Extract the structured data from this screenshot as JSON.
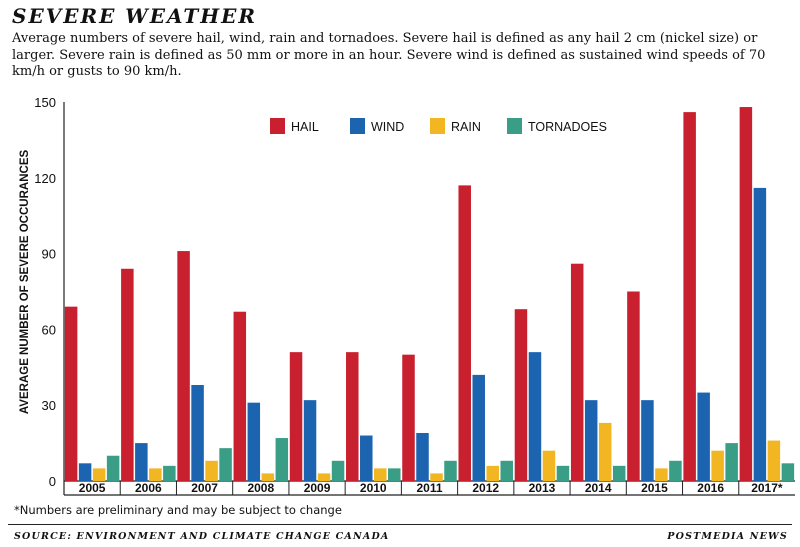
{
  "header": {
    "title": "SEVERE WEATHER",
    "subtitle": "Average numbers of severe hail, wind, rain and tornadoes. Severe hail is defined as any hail 2 cm (nickel size) or larger. Severe rain is defined as 50 mm or more in an hour. Severe wind is defined as sustained wind speeds of 70 km/h or gusts to 90 km/h."
  },
  "footnote": "*Numbers are preliminary and may be subject to change",
  "source": "SOURCE: ENVIRONMENT AND CLIMATE CHANGE CANADA",
  "credit": "POSTMEDIA NEWS",
  "colors": {
    "hail": "#c8202e",
    "wind": "#1c64b0",
    "rain": "#f2b622",
    "tornadoes": "#3a9e86"
  },
  "chart_data": {
    "type": "bar",
    "title": "",
    "xlabel": "",
    "ylabel": "AVERAGE NUMBER OF SEVERE OCCURANCES",
    "ylim": [
      0,
      150
    ],
    "yticks": [
      0,
      30,
      60,
      90,
      120,
      150
    ],
    "grid": false,
    "legend_position": "top-center",
    "categories": [
      "2005",
      "2006",
      "2007",
      "2008",
      "2009",
      "2010",
      "2011",
      "2012",
      "2013",
      "2014",
      "2015",
      "2016",
      "2017*"
    ],
    "series": [
      {
        "name": "HAIL",
        "color": "#c8202e",
        "values": [
          69,
          84,
          91,
          67,
          51,
          51,
          50,
          117,
          68,
          86,
          75,
          146,
          148
        ]
      },
      {
        "name": "WIND",
        "color": "#1c64b0",
        "values": [
          7,
          15,
          38,
          31,
          32,
          18,
          19,
          42,
          51,
          32,
          32,
          35,
          116
        ]
      },
      {
        "name": "RAIN",
        "color": "#f2b622",
        "values": [
          5,
          5,
          8,
          3,
          3,
          5,
          3,
          6,
          12,
          23,
          5,
          12,
          16
        ]
      },
      {
        "name": "TORNADOES",
        "color": "#3a9e86",
        "values": [
          10,
          6,
          13,
          17,
          8,
          5,
          8,
          8,
          6,
          6,
          8,
          15,
          7
        ]
      }
    ]
  }
}
